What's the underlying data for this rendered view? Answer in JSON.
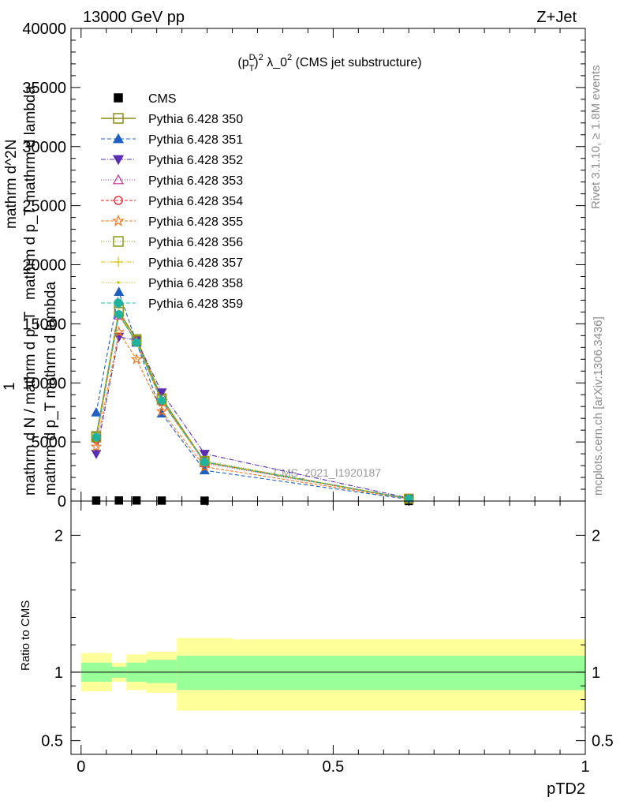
{
  "header": {
    "energy_label": "13000 GeV pp",
    "process_label": "Z+Jet"
  },
  "side_labels": {
    "rivet": "Rivet 3.1.10, ≥ 1.8M events",
    "mcplots": "mcplots.cern.ch [arXiv:1306.3436]"
  },
  "chart_data": [
    {
      "type": "line",
      "title": "(p_T^D)^2 λ_0^2 (CMS jet substructure)",
      "title_parts": {
        "p": "(p",
        "sup_d": "D",
        "sub_t": "T",
        "close": ")",
        "sup_2": "2",
        "lambda": " λ_0",
        "sup_2b": "2",
        "rest": " (CMS jet substructure)"
      },
      "ylabel_lines": [
        "mathrm d^2N",
        "mathrm d p_T mathrm d lambda",
        "1",
        "mathrm d N / mathrm d p_T",
        "mathrm d p_T mathrm d lambda"
      ],
      "ylim": [
        0,
        40000
      ],
      "yticks": [
        0,
        5000,
        10000,
        15000,
        20000,
        25000,
        30000,
        35000,
        40000
      ],
      "ytick_labels": [
        "0",
        "5000",
        "10000",
        "15000",
        "20000",
        "25000",
        "30000",
        "35000",
        "40000"
      ],
      "xlim": [
        -0.02,
        1.0
      ],
      "watermark": "CMS_2021_I1920187",
      "legend_position": "top-left",
      "x": [
        0.03,
        0.075,
        0.11,
        0.16,
        0.245,
        0.65
      ],
      "series": [
        {
          "name": "CMS",
          "color": "#000000",
          "marker": "square-filled",
          "dash": "",
          "values": [
            40,
            50,
            50,
            40,
            30,
            5
          ]
        },
        {
          "name": "Pythia 6.428 350",
          "color": "#8c8c1a",
          "marker": "square-open",
          "dash": "",
          "values": [
            5500,
            16000,
            13700,
            8700,
            3300,
            200
          ]
        },
        {
          "name": "Pythia 6.428 351",
          "color": "#1f5fbf",
          "marker": "triangle-up-filled",
          "dash": "5,3",
          "values": [
            7500,
            17700,
            13400,
            7400,
            2600,
            150
          ]
        },
        {
          "name": "Pythia 6.428 352",
          "color": "#5a2db5",
          "marker": "triangle-down-filled",
          "dash": "6,2,1,2",
          "values": [
            4000,
            13900,
            13600,
            9200,
            4000,
            250
          ]
        },
        {
          "name": "Pythia 6.428 353",
          "color": "#c0308a",
          "marker": "triangle-up-open",
          "dash": "1,2",
          "values": [
            5300,
            15700,
            13500,
            8500,
            3200,
            200
          ]
        },
        {
          "name": "Pythia 6.428 354",
          "color": "#e0202a",
          "marker": "circle-open",
          "dash": "4,2",
          "values": [
            5200,
            15800,
            13400,
            8400,
            3300,
            200
          ]
        },
        {
          "name": "Pythia 6.428 355",
          "color": "#f07820",
          "marker": "star-open",
          "dash": "4,2",
          "values": [
            4600,
            14300,
            12000,
            7600,
            2900,
            180
          ]
        },
        {
          "name": "Pythia 6.428 356",
          "color": "#8c9a1a",
          "marker": "square-open",
          "dash": "1,2",
          "values": [
            5400,
            16200,
            13600,
            8600,
            3400,
            200
          ]
        },
        {
          "name": "Pythia 6.428 357",
          "color": "#d8c400",
          "marker": "plus-dot",
          "dash": "6,2,1,2",
          "values": [
            5400,
            15900,
            13500,
            8500,
            3300,
            200
          ]
        },
        {
          "name": "Pythia 6.428 358",
          "color": "#bccc00",
          "marker": "dot",
          "dash": "1,2",
          "values": [
            5300,
            15800,
            13400,
            8400,
            3300,
            200
          ]
        },
        {
          "name": "Pythia 6.428 359",
          "color": "#20b4a0",
          "marker": "circle-filled",
          "dash": "5,3",
          "values": [
            5400,
            15800,
            13400,
            8500,
            3300,
            200
          ]
        }
      ]
    },
    {
      "type": "area",
      "ylabel": "Ratio to CMS",
      "xlabel": "pTD2",
      "xlim": [
        -0.02,
        1.0
      ],
      "ylim": [
        0.4,
        2.25
      ],
      "yticks": [
        0.5,
        1,
        2
      ],
      "ytick_labels": [
        "0.5",
        "1",
        "2"
      ],
      "xticks": [
        0,
        0.5,
        1
      ],
      "xtick_labels": [
        "0",
        "0.5",
        "1"
      ],
      "bins": [
        {
          "lo": 0.0,
          "hi": 0.06,
          "inner": [
            0.93,
            1.07
          ],
          "outer": [
            0.86,
            1.14
          ]
        },
        {
          "lo": 0.06,
          "hi": 0.09,
          "inner": [
            0.96,
            1.04
          ],
          "outer": [
            0.93,
            1.07
          ]
        },
        {
          "lo": 0.09,
          "hi": 0.13,
          "inner": [
            0.93,
            1.07
          ],
          "outer": [
            0.87,
            1.13
          ]
        },
        {
          "lo": 0.13,
          "hi": 0.19,
          "inner": [
            0.92,
            1.09
          ],
          "outer": [
            0.85,
            1.15
          ]
        },
        {
          "lo": 0.19,
          "hi": 0.3,
          "inner": [
            0.87,
            1.12
          ],
          "outer": [
            0.72,
            1.25
          ]
        },
        {
          "lo": 0.3,
          "hi": 1.0,
          "inner": [
            0.87,
            1.12
          ],
          "outer": [
            0.72,
            1.24
          ]
        }
      ],
      "colors": {
        "inner": "#99ff99",
        "outer": "#ffff99"
      }
    }
  ]
}
